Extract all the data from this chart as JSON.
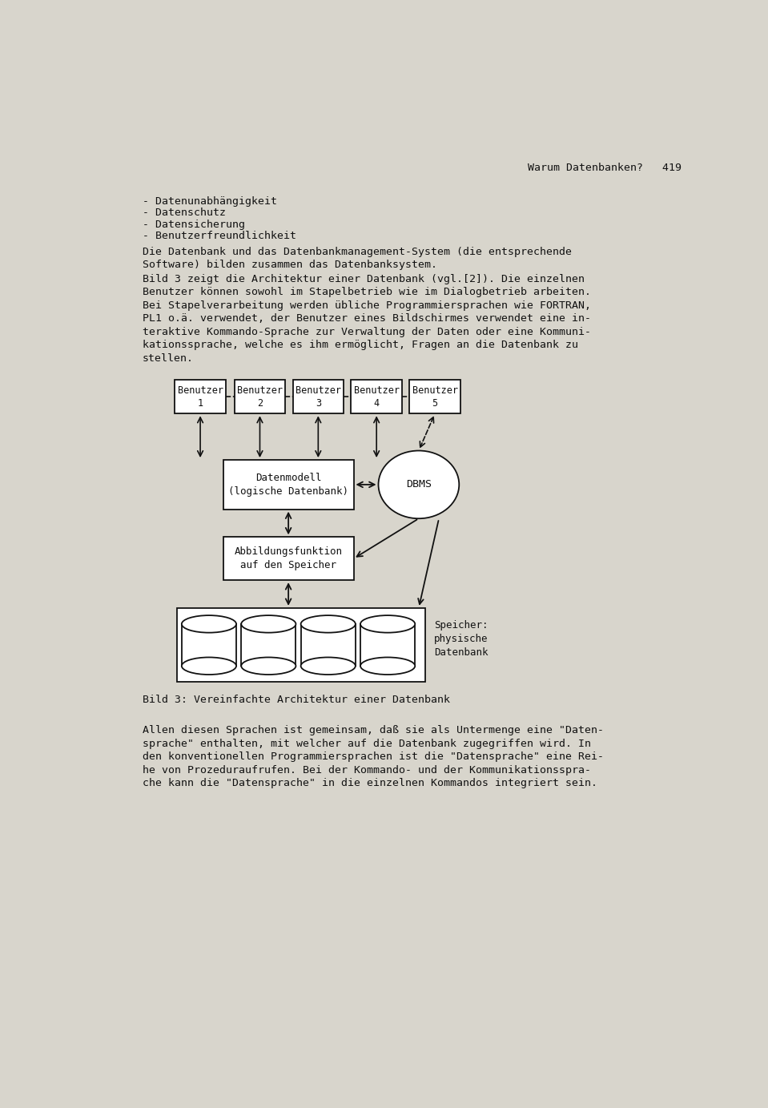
{
  "bg_color": "#d8d5cc",
  "page_width": 9.59,
  "page_height": 13.83,
  "header_text": "Warum Datenbanken?   419",
  "bullet_items": [
    "- Datenunabhängigkeit",
    "- Datenschutz",
    "- Datensicherung",
    "- Benutzerfreundlichkeit"
  ],
  "para1": "Die Datenbank und das Datenbankmanagement-System (die entsprechende\nSoftware) bilden zusammen das Datenbanksystem.",
  "para2": "Bild 3 zeigt die Architektur einer Datenbank (vgl.[2]). Die einzelnen\nBenutzer können sowohl im Stapelbetrieb wie im Dialogbetrieb arbeiten.\nBei Stapelverarbeitung werden übliche Programmiersprachen wie FORTRAN,\nPL1 o.ä. verwendet, der Benutzer eines Bildschirmes verwendet eine in-\nteraktive Kommando-Sprache zur Verwaltung der Daten oder eine Kommuni-\nkationssprache, welche es ihm ermöglicht, Fragen an die Datenbank zu\nstellen.",
  "benutzer_labels": [
    "Benutzer\n1",
    "Benutzer\n2",
    "Benutzer\n3",
    "Benutzer\n4",
    "Benutzer\n5"
  ],
  "datenmodell_label": "Datenmodell\n(logische Datenbank)",
  "dbms_label": "DBMS",
  "abbildung_label": "Abbildungsfunktion\nauf den Speicher",
  "speicher_label": "Speicher:\nphysische\nDatenbank",
  "caption": "Bild 3: Vereinfachte Architektur einer Datenbank",
  "para3": "Allen diesen Sprachen ist gemeinsam, daß sie als Untermenge eine \"Daten-\nsprache\" enthalten, mit welcher auf die Datenbank zugegriffen wird. In\nden konventionellen Programmiersprachen ist die \"Datensprache\" eine Rei-\nhe von Prozeduraufrufen. Bei der Kommando- und der Kommunikationsspra-\nche kann die \"Datensprache\" in die einzelnen Kommandos integriert sein.",
  "font_color": "#111111"
}
